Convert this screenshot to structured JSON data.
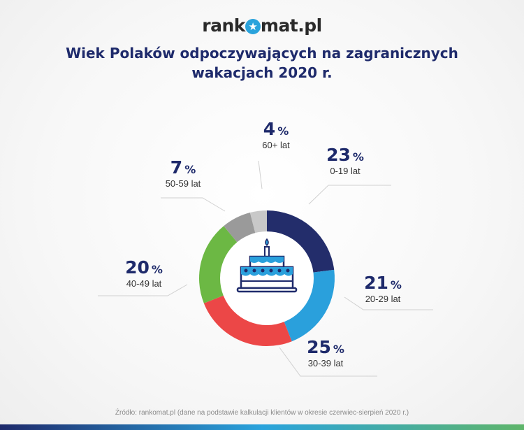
{
  "logo": {
    "text_before": "rank",
    "text_after": "mat.pl",
    "icon": "star-icon"
  },
  "title": {
    "line1": "Wiek Polaków odpoczywających na zagranicznych",
    "line2": "wakacjach 2020 r."
  },
  "chart_data": {
    "type": "pie",
    "variant": "donut",
    "title": "Wiek Polaków odpoczywających na zagranicznych wakacjach 2020 r.",
    "unit": "%",
    "start": "top, clockwise",
    "slices": [
      {
        "label": "0-19 lat",
        "value": 23,
        "color": "#232d6b"
      },
      {
        "label": "20-29 lat",
        "value": 21,
        "color": "#2aa0dc"
      },
      {
        "label": "30-39 lat",
        "value": 25,
        "color": "#ec4747"
      },
      {
        "label": "40-49 lat",
        "value": 20,
        "color": "#6cb844"
      },
      {
        "label": "50-59 lat",
        "value": 7,
        "color": "#9a9a9a"
      },
      {
        "label": "60+ lat",
        "value": 4,
        "color": "#c8c8c8"
      }
    ],
    "center_icon": "birthday-cake-icon"
  },
  "source": "Źródło: rankomat.pl (dane na podstawie kalkulacji klientów w okresie czerwiec-sierpień 2020 r.)"
}
